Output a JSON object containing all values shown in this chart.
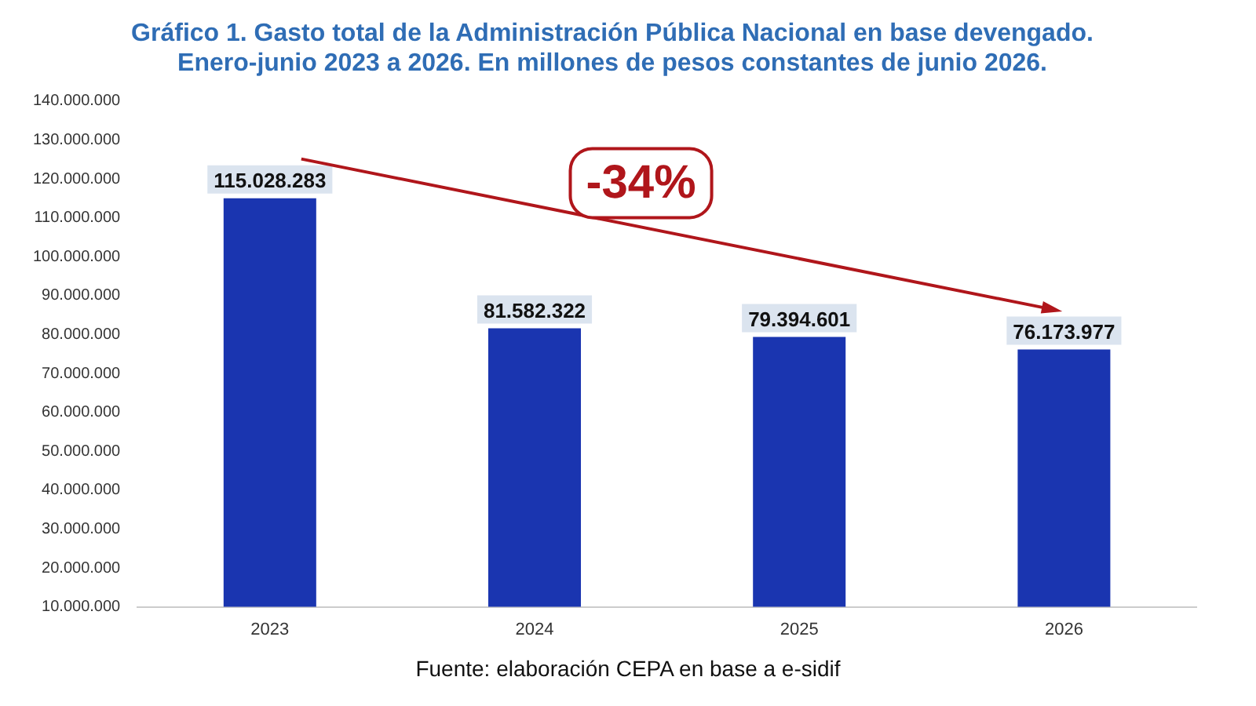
{
  "chart_data": {
    "type": "bar",
    "title": "Gráfico 1. Gasto total de la Administración Pública Nacional en base devengado.\nEnero-junio 2023 a 2026. En millones de pesos constantes de junio 2026.",
    "categories": [
      "2023",
      "2024",
      "2025",
      "2026"
    ],
    "values": [
      115028283,
      81582322,
      79394601,
      76173977
    ],
    "value_labels": [
      "115.028.283",
      "81.582.322",
      "79.394.601",
      "76.173.977"
    ],
    "color": "#1a35b0",
    "ylim": [
      10000000,
      140000000
    ],
    "yticks": [
      {
        "value": 10000000,
        "label": "10.000.000"
      },
      {
        "value": 20000000,
        "label": "20.000.000"
      },
      {
        "value": 30000000,
        "label": "30.000.000"
      },
      {
        "value": 40000000,
        "label": "40.000.000"
      },
      {
        "value": 50000000,
        "label": "50.000.000"
      },
      {
        "value": 60000000,
        "label": "60.000.000"
      },
      {
        "value": 70000000,
        "label": "70.000.000"
      },
      {
        "value": 80000000,
        "label": "80.000.000"
      },
      {
        "value": 90000000,
        "label": "90.000.000"
      },
      {
        "value": 100000000,
        "label": "100.000.000"
      },
      {
        "value": 110000000,
        "label": "110.000.000"
      },
      {
        "value": 120000000,
        "label": "120.000.000"
      },
      {
        "value": 130000000,
        "label": "130.000.000"
      },
      {
        "value": 140000000,
        "label": "140.000.000"
      }
    ],
    "grid": false,
    "legend": false,
    "annotations": [
      "-34%",
      "Fuente: elaboración CEPA en base a e-sidif"
    ]
  }
}
